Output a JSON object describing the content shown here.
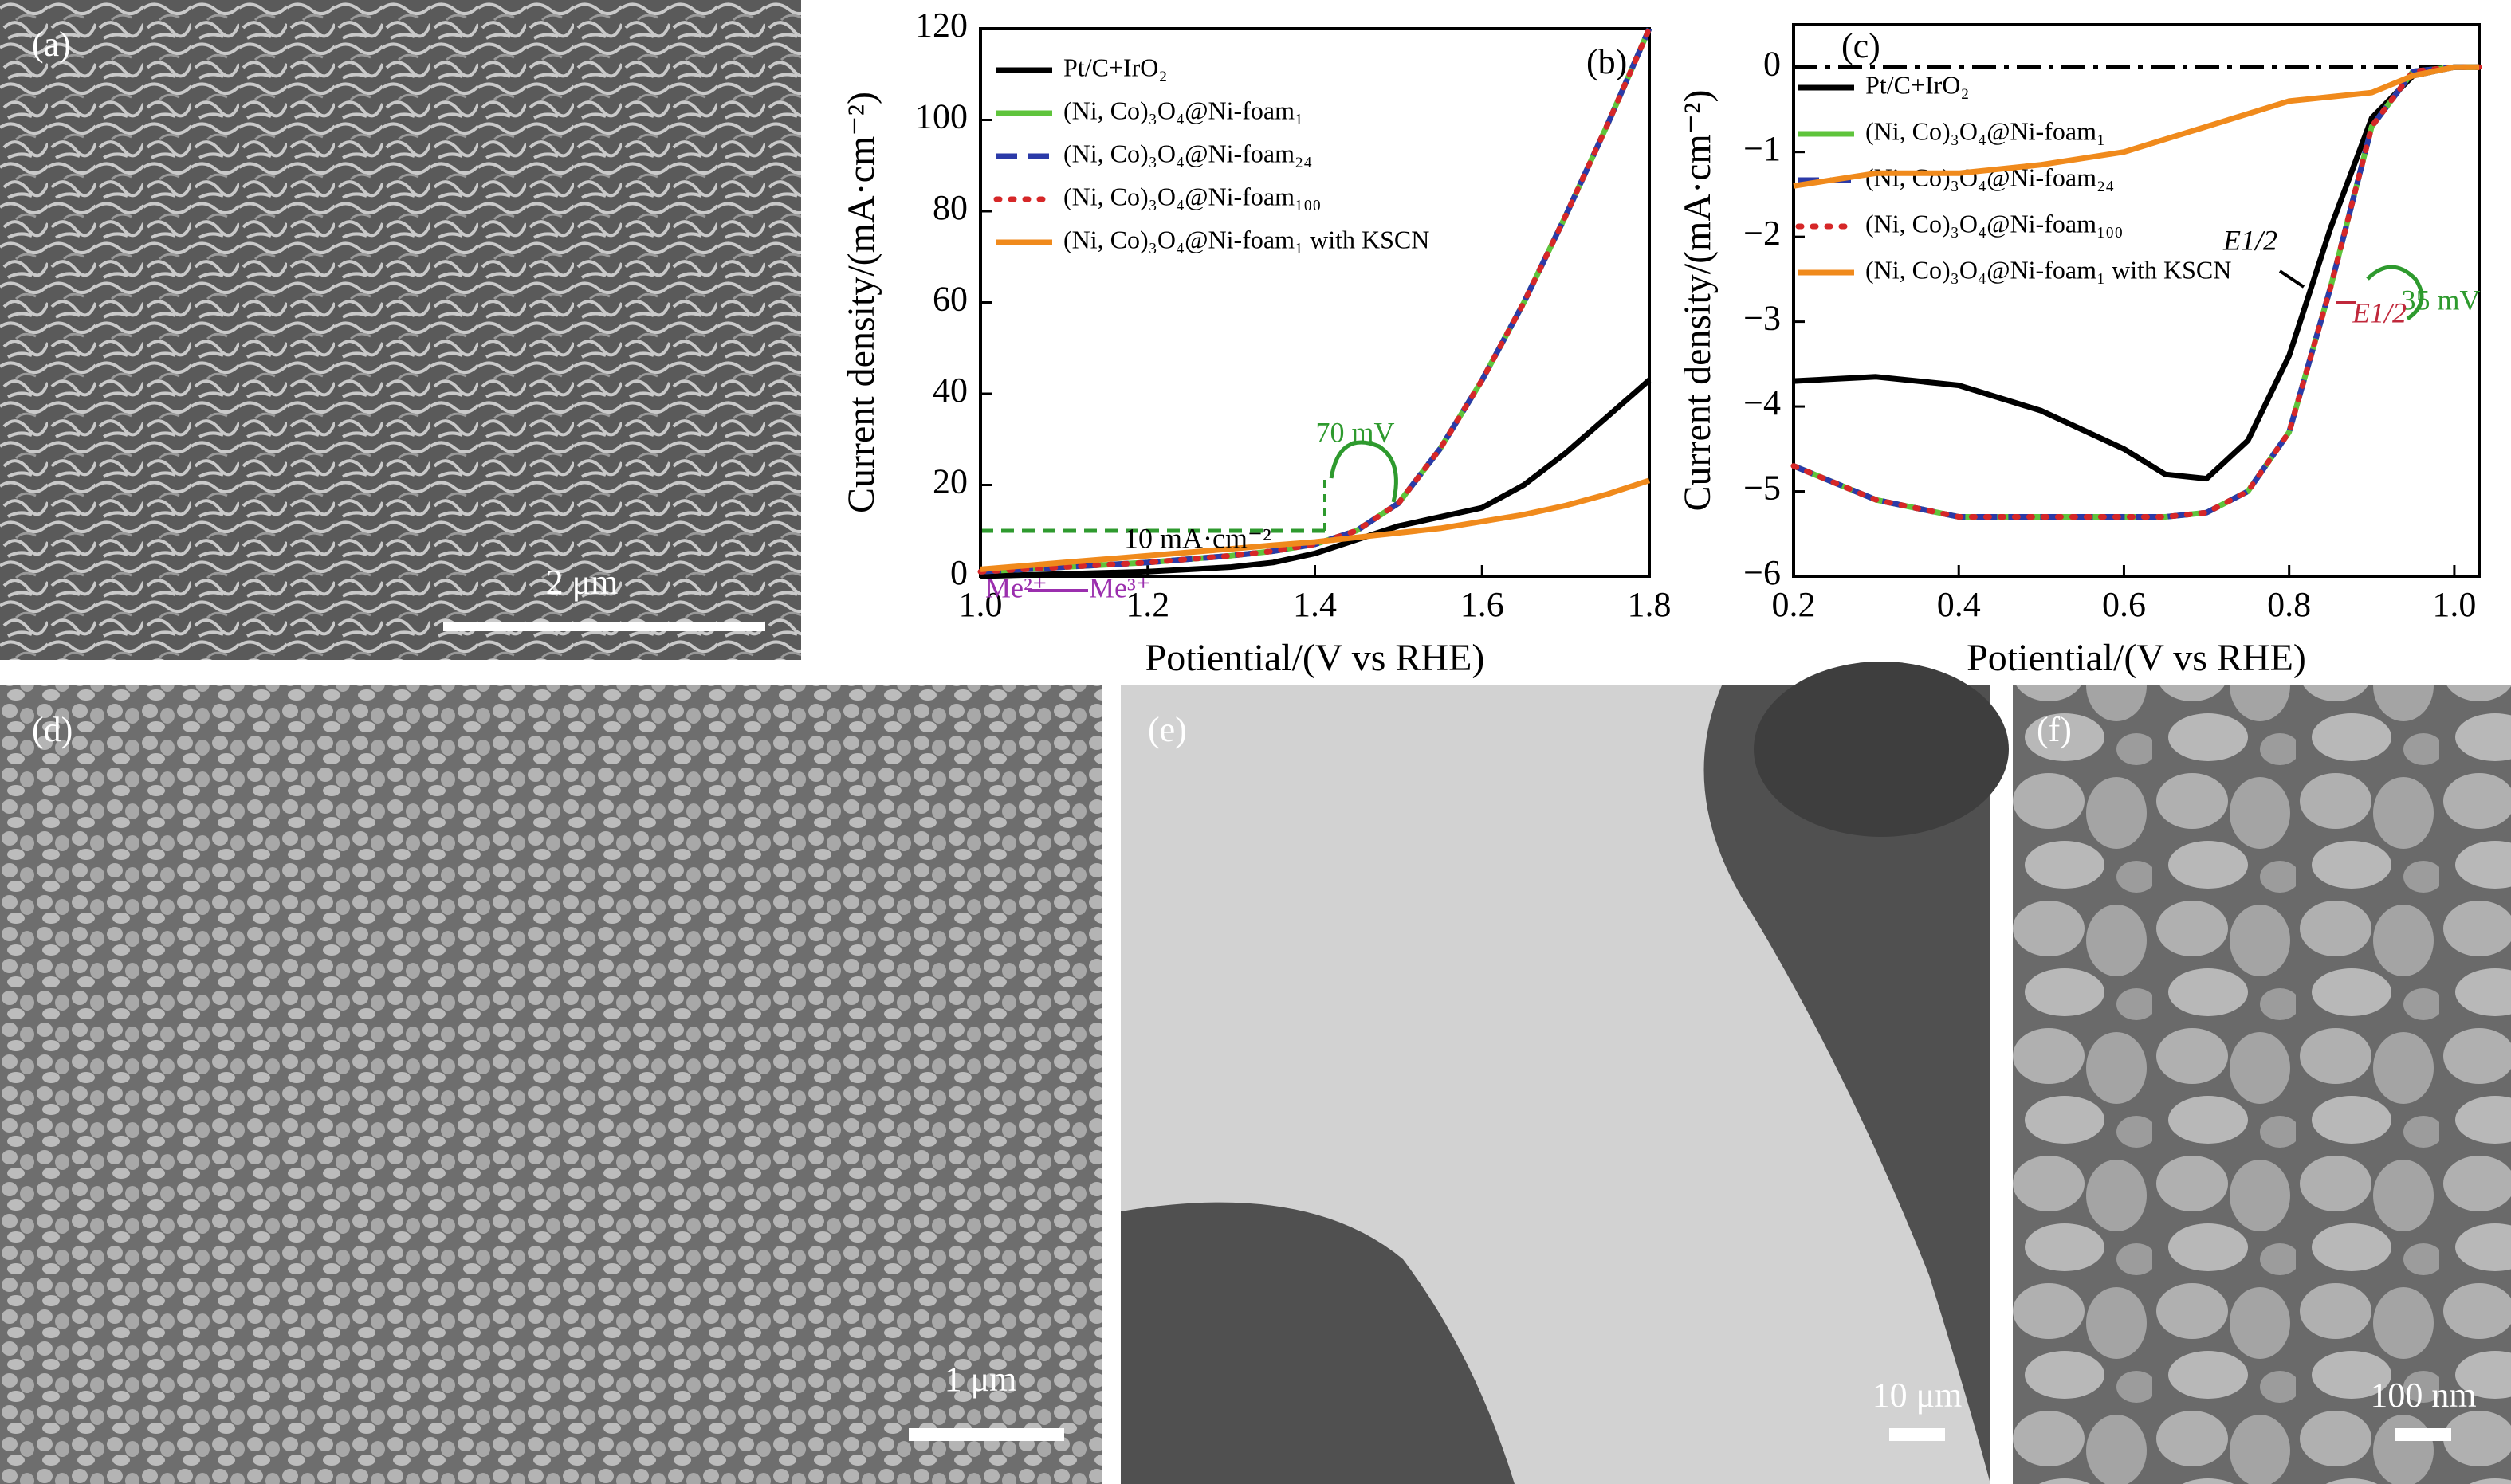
{
  "chart_data": [
    {
      "type": "line",
      "panel": "(b)",
      "x_label": "Potiential/(V vs RHE)",
      "y_label": "Current density/(mA·cm⁻²)",
      "xlim": [
        1.0,
        1.8
      ],
      "xticks": [
        {
          "value": 1.0,
          "label": "1.0"
        },
        1.2,
        1.4,
        1.6,
        1.8
      ],
      "ylim": [
        0,
        120
      ],
      "yticks": [
        0,
        20,
        40,
        60,
        80,
        100,
        120
      ],
      "legend": "upper left",
      "x": [
        1.0,
        1.1,
        1.2,
        1.3,
        1.35,
        1.4,
        1.45,
        1.5,
        1.55,
        1.6,
        1.65,
        1.7,
        1.75,
        1.8
      ],
      "series": [
        {
          "name": "Pt/C+IrO₂",
          "color": "#000000",
          "style": "solid",
          "values": [
            0,
            0.5,
            1,
            2,
            3,
            5,
            8,
            11,
            13,
            15,
            20,
            27,
            35,
            43
          ]
        },
        {
          "name": "(Ni, Co)₃O₄@Ni-foam₁",
          "color": "#5fc43c",
          "style": "solid",
          "values": [
            1,
            2,
            3,
            4.5,
            5.5,
            7,
            10,
            16,
            28,
            43,
            60,
            79,
            99,
            120
          ]
        },
        {
          "name": "(Ni, Co)₃O₄@Ni-foam₂₄",
          "color": "#2b3aa8",
          "style": "dashed",
          "values": [
            1,
            2,
            3,
            4.5,
            5.5,
            7,
            10,
            16,
            28,
            43,
            60,
            79,
            99,
            120
          ]
        },
        {
          "name": "(Ni, Co)₃O₄@Ni-foam₁₀₀",
          "color": "#d62728",
          "style": "dotted",
          "values": [
            1,
            2,
            3,
            4.5,
            5.5,
            7,
            10,
            16,
            28,
            43,
            60,
            79,
            99,
            120
          ]
        },
        {
          "name": "(Ni, Co)₃O₄@Ni-foam₁ with KSCN",
          "color": "#f08a1c",
          "style": "solid",
          "values": [
            1.5,
            3,
            4.5,
            6,
            6.8,
            7.5,
            8.5,
            9.5,
            10.5,
            12,
            13.5,
            15.5,
            18,
            21
          ]
        }
      ],
      "annotations": [
        "70 mV",
        "10 mA·cm⁻²",
        "Me²⁺",
        "Me³⁺"
      ]
    },
    {
      "type": "line",
      "panel": "(c)",
      "x_label": "Potiential/(V vs RHE)",
      "y_label": "Current density/(mA·cm⁻²)",
      "xlim": [
        0.2,
        1.03
      ],
      "xticks": [
        0.2,
        0.4,
        0.6,
        0.8,
        {
          "value": 1,
          "label": "1.0"
        }
      ],
      "ylim": [
        -6,
        0.5
      ],
      "yticks": [
        {
          "value": -6,
          "label": "−6"
        },
        {
          "value": -5,
          "label": "−5"
        },
        {
          "value": -4,
          "label": "−4"
        },
        {
          "value": -3,
          "label": "−3"
        },
        {
          "value": -2,
          "label": "−2"
        },
        {
          "value": -1,
          "label": "−1"
        },
        0
      ],
      "legend": "upper left",
      "x": [
        0.2,
        0.3,
        0.4,
        0.5,
        0.6,
        0.65,
        0.7,
        0.75,
        0.8,
        0.85,
        0.9,
        0.95,
        1.0,
        1.03
      ],
      "series": [
        {
          "name": "Pt/C+IrO₂",
          "color": "#000000",
          "style": "solid",
          "values": [
            -3.7,
            -3.65,
            -3.75,
            -4.05,
            -4.5,
            -4.8,
            -4.85,
            -4.4,
            -3.4,
            -1.9,
            -0.6,
            -0.1,
            0,
            0
          ]
        },
        {
          "name": "(Ni, Co)₃O₄@Ni-foam₁",
          "color": "#5fc43c",
          "style": "solid",
          "values": [
            -4.7,
            -5.1,
            -5.3,
            -5.3,
            -5.3,
            -5.3,
            -5.25,
            -5.0,
            -4.3,
            -2.6,
            -0.7,
            -0.05,
            0,
            0
          ]
        },
        {
          "name": "(Ni, Co)₃O₄@Ni-foam₂₄",
          "color": "#2b3aa8",
          "style": "dashed",
          "values": [
            -4.7,
            -5.1,
            -5.3,
            -5.3,
            -5.3,
            -5.3,
            -5.25,
            -5.0,
            -4.3,
            -2.6,
            -0.7,
            -0.05,
            0,
            0
          ]
        },
        {
          "name": "(Ni, Co)₃O₄@Ni-foam₁₀₀",
          "color": "#d62728",
          "style": "dotted",
          "values": [
            -4.7,
            -5.1,
            -5.3,
            -5.3,
            -5.3,
            -5.3,
            -5.25,
            -5.0,
            -4.3,
            -2.6,
            -0.7,
            -0.05,
            0,
            0
          ]
        },
        {
          "name": "(Ni, Co)₃O₄@Ni-foam₁ with KSCN",
          "color": "#f08a1c",
          "style": "solid",
          "values": [
            -1.4,
            -1.25,
            -1.25,
            -1.15,
            -1.0,
            -0.85,
            -0.7,
            -0.55,
            -0.4,
            -0.35,
            -0.3,
            -0.1,
            0,
            0
          ]
        }
      ],
      "annotations": [
        "E1/2",
        "35 mV",
        "E1/2"
      ]
    }
  ],
  "images": [
    {
      "label": "(a)",
      "scale_bar": "2 μm"
    },
    {
      "label": "(d)",
      "scale_bar": "1 μm"
    },
    {
      "label": "(e)",
      "scale_bar": "10 μm"
    },
    {
      "label": "(f)",
      "scale_bar": "100 nm"
    }
  ]
}
